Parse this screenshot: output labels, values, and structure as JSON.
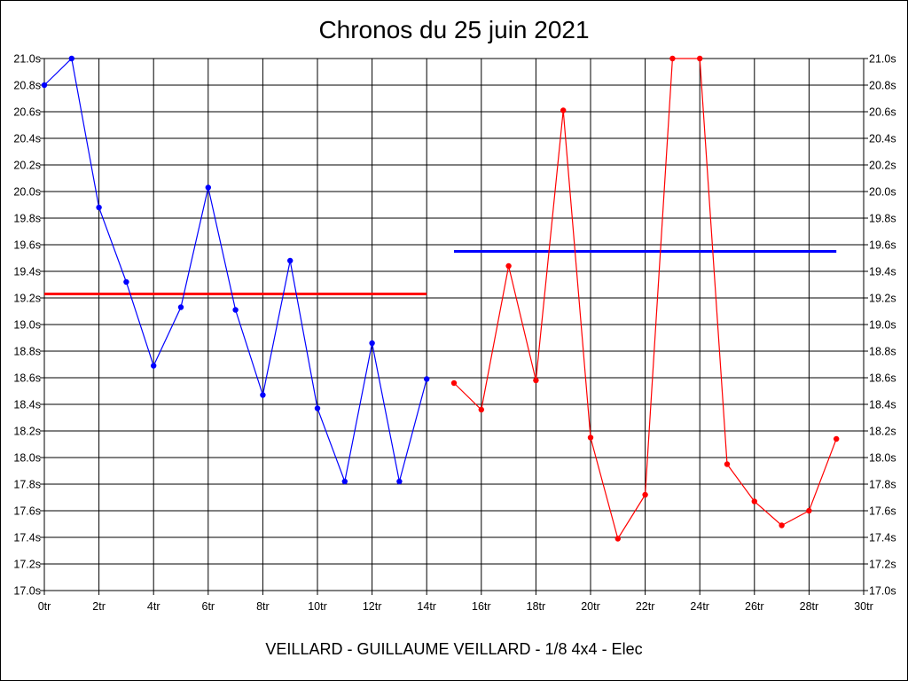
{
  "chart_data": {
    "type": "line",
    "title": "Chronos du 25 juin 2021",
    "subtitle": "VEILLARD - GUILLAUME VEILLARD - 1/8 4x4 - Elec",
    "xlim": [
      0,
      30
    ],
    "ylim": [
      17.0,
      21.0
    ],
    "x_ticks": [
      0,
      2,
      4,
      6,
      8,
      10,
      12,
      14,
      16,
      18,
      20,
      22,
      24,
      26,
      28,
      30
    ],
    "x_tick_labels": [
      "0tr",
      "2tr",
      "4tr",
      "6tr",
      "8tr",
      "10tr",
      "12tr",
      "14tr",
      "16tr",
      "18tr",
      "20tr",
      "22tr",
      "24tr",
      "26tr",
      "28tr",
      "30tr"
    ],
    "y_ticks": [
      17.0,
      17.2,
      17.4,
      17.6,
      17.8,
      18.0,
      18.2,
      18.4,
      18.6,
      18.8,
      19.0,
      19.2,
      19.4,
      19.6,
      19.8,
      20.0,
      20.2,
      20.4,
      20.6,
      20.8,
      21.0
    ],
    "y_tick_labels": [
      "17.0s",
      "17.2s",
      "17.4s",
      "17.6s",
      "17.8s",
      "18.0s",
      "18.2s",
      "18.4s",
      "18.6s",
      "18.8s",
      "19.0s",
      "19.2s",
      "19.4s",
      "19.6s",
      "19.8s",
      "20.0s",
      "20.2s",
      "20.4s",
      "20.6s",
      "20.8s",
      "21.0s"
    ],
    "grid": true,
    "series": [
      {
        "color": "#0000ff",
        "x": [
          0,
          1,
          2,
          3,
          4,
          5,
          6,
          7,
          8,
          9,
          10,
          11,
          12,
          13,
          14
        ],
        "y": [
          20.8,
          21.0,
          19.88,
          19.32,
          18.69,
          19.13,
          20.03,
          19.11,
          18.47,
          19.48,
          18.37,
          17.82,
          18.86,
          17.82,
          18.59
        ]
      },
      {
        "color": "#ff0000",
        "x": [
          15,
          16,
          17,
          18,
          19,
          20,
          21,
          22,
          23,
          24,
          25,
          26,
          27,
          28,
          29
        ],
        "y": [
          18.56,
          18.36,
          19.44,
          18.58,
          20.61,
          18.15,
          17.39,
          17.72,
          21.0,
          21.0,
          17.95,
          17.67,
          17.49,
          17.6,
          18.14
        ]
      }
    ],
    "average_lines": [
      {
        "color": "#ff0000",
        "x": [
          0,
          14
        ],
        "y": 19.23
      },
      {
        "color": "#0000ff",
        "x": [
          15,
          29
        ],
        "y": 19.55
      }
    ]
  }
}
